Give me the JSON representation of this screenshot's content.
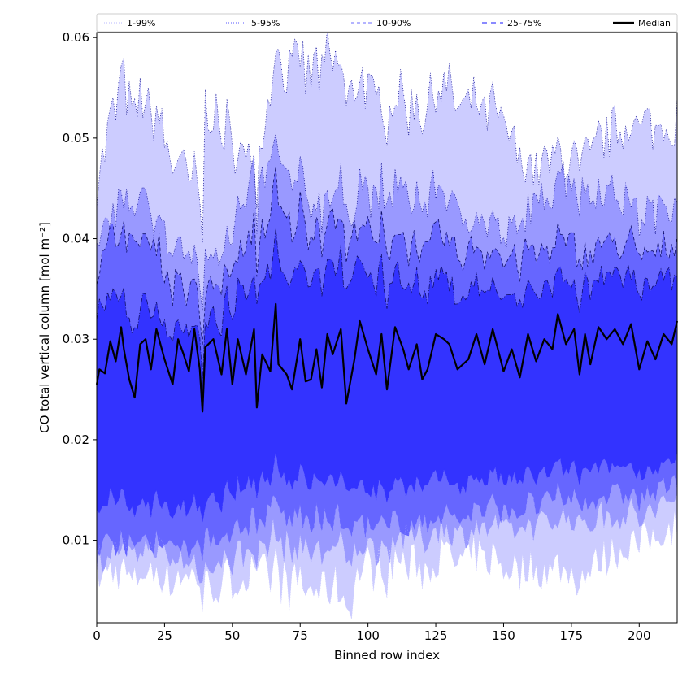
{
  "chart_data": {
    "type": "area",
    "xlabel": "Binned row index",
    "ylabel": "CO total vertical column [mol m⁻²]",
    "xlim": [
      0,
      214
    ],
    "ylim": [
      0.0018,
      0.0605
    ],
    "x_ticks": [
      0,
      25,
      50,
      75,
      100,
      125,
      150,
      175,
      200
    ],
    "x_tick_labels": [
      "0",
      "25",
      "50",
      "75",
      "100",
      "125",
      "150",
      "175",
      "200"
    ],
    "y_ticks": [
      0.01,
      0.02,
      0.03,
      0.04,
      0.05,
      0.06
    ],
    "y_tick_labels": [
      "0.01",
      "0.02",
      "0.03",
      "0.04",
      "0.05",
      "0.06"
    ],
    "grid": false,
    "legend_position": "top, above plot",
    "bands": [
      {
        "name": "1-99%",
        "color": "#ccccff",
        "line_style": "dotted",
        "lower_mean": 0.0083,
        "upper_mean": 0.0506,
        "lower_x": [
          0,
          20,
          38,
          39,
          60,
          93,
          100,
          140,
          177,
          200,
          214
        ],
        "lower_values": [
          0.0068,
          0.0065,
          0.0062,
          0.0048,
          0.0068,
          0.0045,
          0.0072,
          0.008,
          0.006,
          0.0095,
          0.011
        ],
        "upper_x": [
          0,
          10,
          20,
          39,
          40,
          58,
          66,
          85,
          100,
          110,
          130,
          150,
          160,
          177,
          200,
          214
        ],
        "upper_values": [
          0.047,
          0.055,
          0.052,
          0.0435,
          0.0525,
          0.047,
          0.058,
          0.0568,
          0.054,
          0.053,
          0.054,
          0.051,
          0.0465,
          0.0465,
          0.051,
          0.05
        ]
      },
      {
        "name": "5-95%",
        "color": "#9999ff",
        "line_style": "dotted",
        "lower_mean": 0.0105,
        "upper_mean": 0.041,
        "lower_x": [
          0,
          20,
          39,
          66,
          93,
          120,
          150,
          200,
          214
        ],
        "lower_values": [
          0.0085,
          0.009,
          0.007,
          0.01,
          0.0085,
          0.0105,
          0.011,
          0.012,
          0.0135
        ],
        "upper_x": [
          0,
          12,
          39,
          66,
          80,
          100,
          125,
          150,
          172,
          200,
          214
        ],
        "upper_values": [
          0.04,
          0.044,
          0.0365,
          0.048,
          0.044,
          0.044,
          0.044,
          0.04,
          0.045,
          0.042,
          0.0425
        ]
      },
      {
        "name": "10-90%",
        "color": "#6666ff",
        "line_style": "dashed",
        "lower_mean": 0.0125,
        "upper_mean": 0.0375,
        "lower_x": [
          0,
          39,
          66,
          100,
          150,
          200,
          214
        ],
        "lower_values": [
          0.01,
          0.0095,
          0.013,
          0.011,
          0.013,
          0.014,
          0.015
        ],
        "upper_x": [
          0,
          12,
          39,
          66,
          100,
          150,
          214
        ],
        "upper_values": [
          0.038,
          0.041,
          0.033,
          0.043,
          0.04,
          0.038,
          0.038
        ]
      },
      {
        "name": "25-75%",
        "color": "#3333ff",
        "line_style": "dashdot",
        "lower_mean": 0.0155,
        "upper_mean": 0.0345,
        "lower_x": [
          0,
          39,
          66,
          100,
          150,
          214
        ],
        "lower_values": [
          0.014,
          0.013,
          0.017,
          0.015,
          0.016,
          0.017
        ],
        "upper_x": [
          0,
          39,
          66,
          100,
          150,
          214
        ],
        "upper_values": [
          0.0345,
          0.03,
          0.038,
          0.036,
          0.034,
          0.035
        ]
      }
    ],
    "median": {
      "name": "Median",
      "color": "#000000",
      "x": [
        0,
        1,
        2,
        3,
        5,
        7,
        9,
        10,
        12,
        14,
        16,
        18,
        20,
        22,
        25,
        28,
        30,
        32,
        34,
        36,
        38,
        39,
        40,
        43,
        46,
        48,
        50,
        52,
        55,
        58,
        59,
        61,
        64,
        66,
        67,
        70,
        72,
        75,
        77,
        79,
        81,
        83,
        85,
        87,
        90,
        92,
        95,
        97,
        100,
        103,
        105,
        107,
        110,
        113,
        115,
        118,
        120,
        122,
        125,
        128,
        130,
        133,
        137,
        140,
        143,
        146,
        150,
        153,
        156,
        159,
        162,
        165,
        168,
        170,
        173,
        176,
        178,
        180,
        182,
        185,
        188,
        191,
        194,
        197,
        200,
        203,
        206,
        209,
        212,
        214
      ],
      "values": [
        0.0255,
        0.027,
        0.0268,
        0.0266,
        0.0298,
        0.0278,
        0.0312,
        0.029,
        0.026,
        0.0242,
        0.0295,
        0.03,
        0.027,
        0.031,
        0.028,
        0.0255,
        0.03,
        0.0285,
        0.0268,
        0.031,
        0.027,
        0.0228,
        0.0292,
        0.03,
        0.0265,
        0.031,
        0.0255,
        0.03,
        0.0265,
        0.031,
        0.0232,
        0.0285,
        0.0268,
        0.0335,
        0.0275,
        0.0265,
        0.025,
        0.03,
        0.0258,
        0.026,
        0.029,
        0.0252,
        0.0305,
        0.0285,
        0.031,
        0.0236,
        0.028,
        0.0318,
        0.029,
        0.0265,
        0.0305,
        0.025,
        0.0312,
        0.029,
        0.027,
        0.0295,
        0.026,
        0.027,
        0.0305,
        0.03,
        0.0295,
        0.027,
        0.028,
        0.0305,
        0.0275,
        0.031,
        0.0268,
        0.029,
        0.0262,
        0.0305,
        0.0278,
        0.03,
        0.029,
        0.0325,
        0.0295,
        0.031,
        0.0265,
        0.0305,
        0.0275,
        0.0312,
        0.03,
        0.031,
        0.0295,
        0.0315,
        0.027,
        0.0298,
        0.028,
        0.0305,
        0.0295,
        0.0318
      ]
    },
    "legend": [
      {
        "label": "1-99%",
        "style": "dotted",
        "color": "#c8c8ff"
      },
      {
        "label": "5-95%",
        "style": "dotted",
        "color": "#7777ff"
      },
      {
        "label": "10-90%",
        "style": "dashed",
        "color": "#8888ff"
      },
      {
        "label": "25-75%",
        "style": "dashdot",
        "color": "#4444ff"
      },
      {
        "label": "Median",
        "style": "solid",
        "color": "#000000"
      }
    ]
  }
}
